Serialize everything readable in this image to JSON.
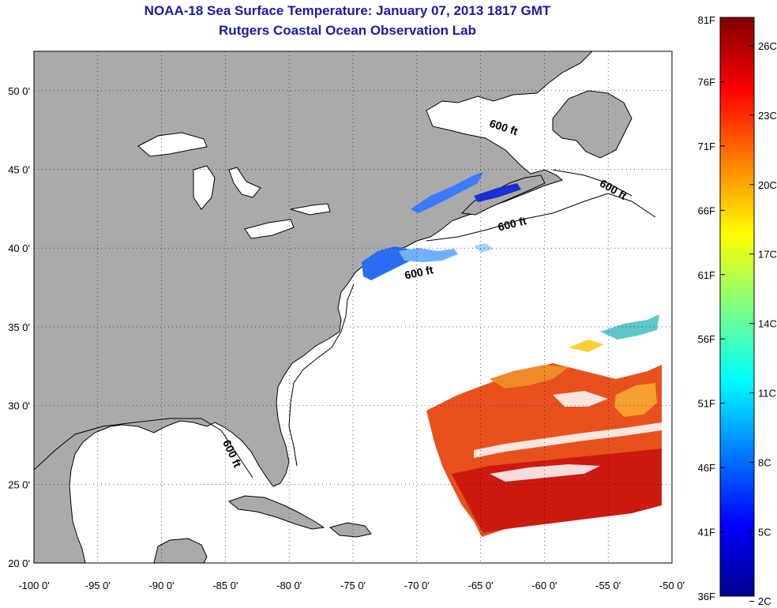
{
  "title": "NOAA-18 Sea Surface Temperature:  January 07, 2013 1817 GMT",
  "subtitle": "Rutgers Coastal Ocean Observation Lab",
  "map": {
    "lon_ticks": [
      "-100 0'",
      "-95 0'",
      "-90 0'",
      "-85 0'",
      "-80 0'",
      "-75 0'",
      "-70 0'",
      "-65 0'",
      "-60 0'",
      "-55 0'",
      "-50 0'"
    ],
    "lat_ticks": [
      "50 0'",
      "45 0'",
      "40 0'",
      "35 0'",
      "30 0'",
      "25 0'",
      "20 0'"
    ],
    "lon_range": [
      -100,
      -50
    ],
    "lat_range": [
      20,
      52.5
    ],
    "grid": "dotted",
    "isobath_labels": [
      "600 ft",
      "600 ft",
      "600 ft",
      "600 ft",
      "600 ft"
    ],
    "land_color": "#aaaaaa",
    "ocean_color": "#ffffff"
  },
  "colorbar": {
    "fahrenheit_labels": [
      "81F",
      "76F",
      "71F",
      "66F",
      "61F",
      "56F",
      "51F",
      "46F",
      "41F",
      "36F"
    ],
    "celsius_labels": [
      "26C",
      "23C",
      "20C",
      "17C",
      "14C",
      "11C",
      "8C",
      "5C",
      "2C"
    ],
    "colormap": "jet"
  }
}
